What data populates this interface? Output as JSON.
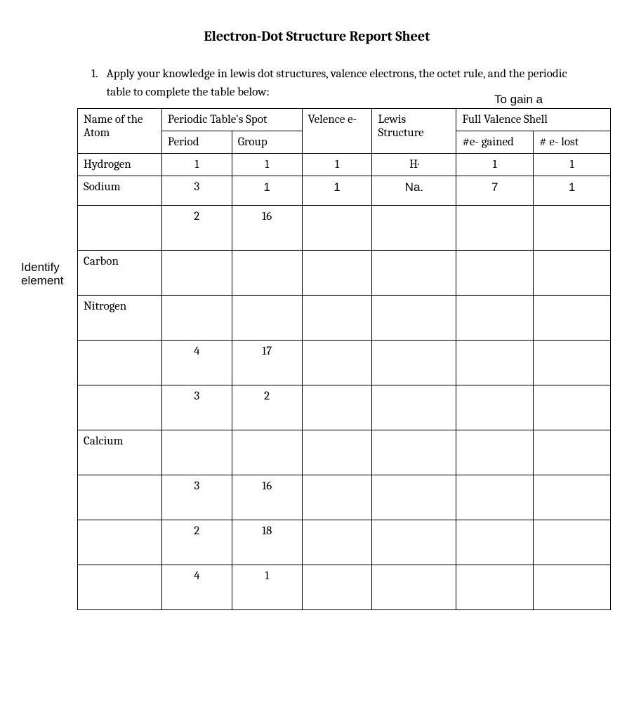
{
  "title": "Electron-Dot Structure Report Sheet",
  "instruction": {
    "number": "1.",
    "text": "Apply your knowledge in lewis dot structures, valence electrons, the octet rule, and the periodic table to complete the table below:"
  },
  "gain_label": "To gain a",
  "side_label": "Identify element",
  "headers": {
    "name": "Name of the Atom",
    "periodic_spot": "Periodic Table's Spot",
    "period": "Period",
    "group": "Group",
    "valence": "Velence e-",
    "lewis": "Lewis Structure",
    "full_valence": "Full Valence Shell",
    "e_gained": "#e- gained",
    "e_lost": "# e- lost"
  },
  "rows": [
    {
      "name": "Hydrogen",
      "period": "1",
      "group": "1",
      "valence": "1",
      "lewis": "H·",
      "gained": "1",
      "lost": "1"
    },
    {
      "name": "Sodium",
      "period": "3",
      "group": "1",
      "valence": "1",
      "lewis": "Na.",
      "gained": "7",
      "lost": "1"
    },
    {
      "name": "",
      "period": "2",
      "group": "16",
      "valence": "",
      "lewis": "",
      "gained": "",
      "lost": ""
    },
    {
      "name": "Carbon",
      "period": "",
      "group": "",
      "valence": "",
      "lewis": "",
      "gained": "",
      "lost": ""
    },
    {
      "name": "Nitrogen",
      "period": "",
      "group": "",
      "valence": "",
      "lewis": "",
      "gained": "",
      "lost": ""
    },
    {
      "name": "",
      "period": "4",
      "group": "17",
      "valence": "",
      "lewis": "",
      "gained": "",
      "lost": ""
    },
    {
      "name": "",
      "period": "3",
      "group": "2",
      "valence": "",
      "lewis": "",
      "gained": "",
      "lost": ""
    },
    {
      "name": "Calcium",
      "period": "",
      "group": "",
      "valence": "",
      "lewis": "",
      "gained": "",
      "lost": ""
    },
    {
      "name": "",
      "period": "3",
      "group": "16",
      "valence": "",
      "lewis": "",
      "gained": "",
      "lost": ""
    },
    {
      "name": "",
      "period": "2",
      "group": "18",
      "valence": "",
      "lewis": "",
      "gained": "",
      "lost": ""
    },
    {
      "name": "",
      "period": "4",
      "group": "1",
      "valence": "",
      "lewis": "",
      "gained": "",
      "lost": ""
    }
  ]
}
